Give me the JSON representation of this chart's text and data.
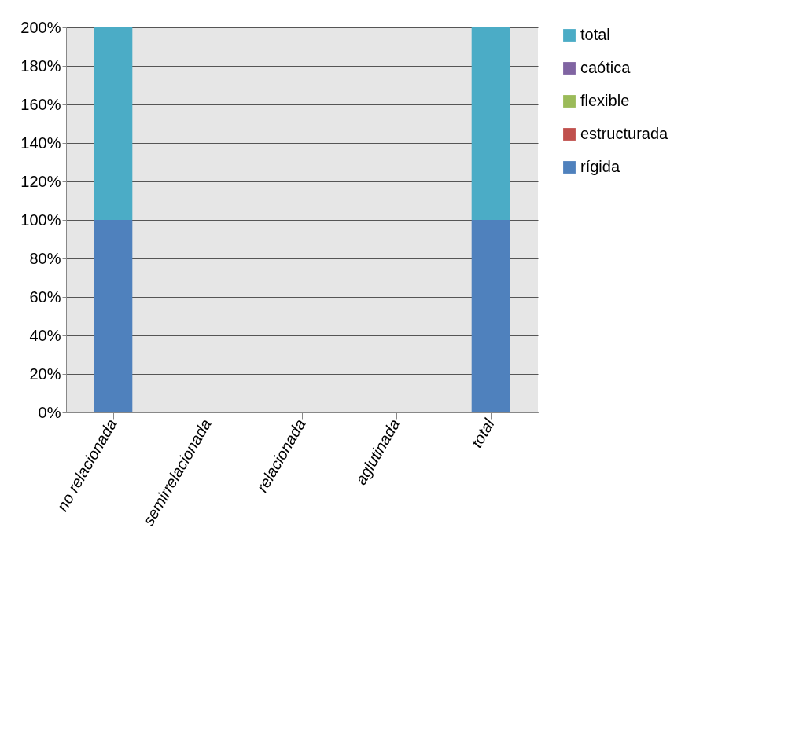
{
  "chart_data": {
    "type": "bar",
    "stacked": true,
    "categories": [
      "no relacionada",
      "semirrelacionada",
      "relacionada",
      "aglutinada",
      "total"
    ],
    "series": [
      {
        "name": "rígida",
        "color": "#4f81bd",
        "values": [
          100,
          0,
          0,
          0,
          100
        ]
      },
      {
        "name": "estructurada",
        "color": "#c0504d",
        "values": [
          0,
          0,
          0,
          0,
          0
        ]
      },
      {
        "name": "flexible",
        "color": "#9bbb59",
        "values": [
          0,
          0,
          0,
          0,
          0
        ]
      },
      {
        "name": "caótica",
        "color": "#8064a2",
        "values": [
          0,
          0,
          0,
          0,
          0
        ]
      },
      {
        "name": "total",
        "color": "#4bacc6",
        "values": [
          100,
          0,
          0,
          0,
          100
        ]
      }
    ],
    "ylim": [
      0,
      200
    ],
    "yticks": [
      {
        "value": 0,
        "label": "0%"
      },
      {
        "value": 20,
        "label": "20%"
      },
      {
        "value": 40,
        "label": "40%"
      },
      {
        "value": 60,
        "label": "60%"
      },
      {
        "value": 80,
        "label": "80%"
      },
      {
        "value": 100,
        "label": "100%"
      },
      {
        "value": 120,
        "label": "120%"
      },
      {
        "value": 140,
        "label": "140%"
      },
      {
        "value": 160,
        "label": "160%"
      },
      {
        "value": 180,
        "label": "180%"
      },
      {
        "value": 200,
        "label": "200%"
      }
    ],
    "grid": "y",
    "legend": "right"
  }
}
